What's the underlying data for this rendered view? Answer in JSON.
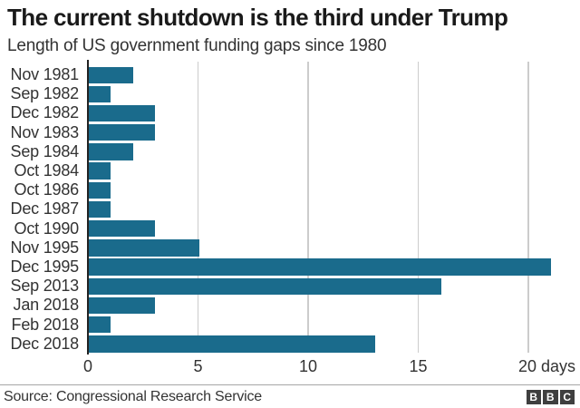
{
  "header": {
    "title": "The current shutdown is the third under Trump",
    "subtitle": "Length of US government funding gaps since 1980"
  },
  "chart_data": {
    "type": "bar",
    "orientation": "horizontal",
    "title": "The current shutdown is the third under Trump",
    "subtitle": "Length of US government funding gaps since 1980",
    "categories": [
      "Nov 1981",
      "Sep 1982",
      "Dec 1982",
      "Nov 1983",
      "Sep 1984",
      "Oct 1984",
      "Oct 1986",
      "Dec 1987",
      "Oct 1990",
      "Nov 1995",
      "Dec 1995",
      "Sep 2013",
      "Jan 2018",
      "Feb 2018",
      "Dec 2018"
    ],
    "values": [
      2,
      1,
      3,
      3,
      2,
      1,
      1,
      1,
      3,
      5,
      21,
      16,
      3,
      1,
      13
    ],
    "unit": "days",
    "xlabel": "days",
    "ylabel": "",
    "x_ticks": [
      0,
      5,
      10,
      15,
      20
    ],
    "x_tick_labels": [
      "0",
      "5",
      "10",
      "15",
      "20 days"
    ],
    "xlim": [
      0,
      22.3
    ],
    "grid": "vertical",
    "legend": "none",
    "bar_color": "#1a6b8c",
    "gridline_color": "#cccccc",
    "axis_color": "#222222"
  },
  "footer": {
    "source": "Source: Congressional Research Service",
    "logo_letters": [
      "B",
      "B",
      "C"
    ]
  }
}
